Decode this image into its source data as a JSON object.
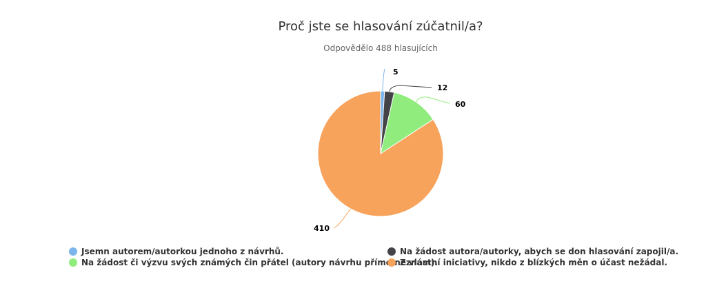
{
  "chart_data": {
    "type": "pie",
    "title": "Proč jste se hlasování zúčatnil/a?",
    "subtitle": "Odpovědělo 488 hlasujících",
    "slices": [
      {
        "name": "Jsemn autorem/autorkou jednoho z návrhů.",
        "value": 5,
        "color": "#7cb5ec"
      },
      {
        "name": "Na žádost autora/autorky, abych se don hlasování zapojil/a.",
        "value": 12,
        "color": "#434348"
      },
      {
        "name": "Na žádost či výzvu svých známých čin přátel (autory návrhu přímo neznám).",
        "value": 60,
        "color": "#90ed7d"
      },
      {
        "name": "Z vlastní iniciativy, nikdo z blízkých měn o účast nežádal.",
        "value": 410,
        "color": "#f7a35c"
      }
    ],
    "legend_position": "bottom"
  }
}
